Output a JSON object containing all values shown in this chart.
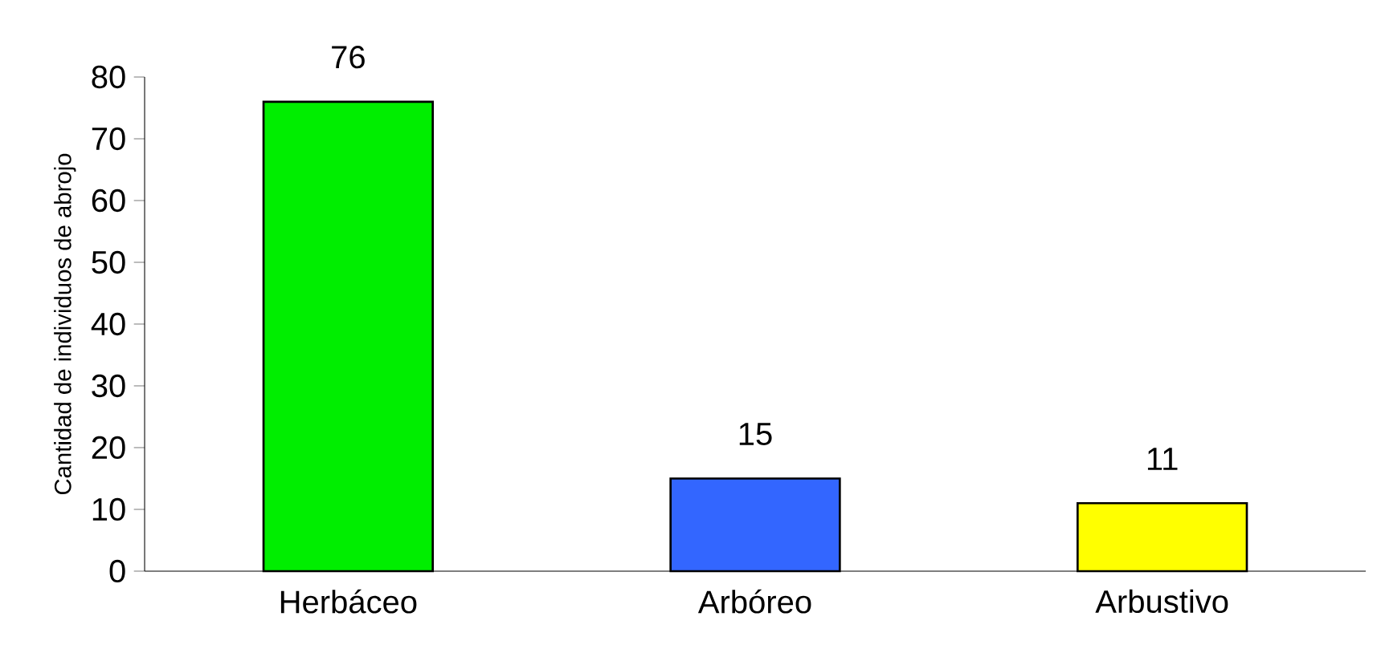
{
  "chart_data": {
    "type": "bar",
    "ylabel": "Cantidad de individuos de abrojo",
    "categories": [
      "Herbáceo",
      "Arbóreo",
      "Arbustivo"
    ],
    "values": [
      76,
      15,
      11
    ],
    "colors": [
      "#00ee00",
      "#3366ff",
      "#ffff00"
    ],
    "ylim": [
      0,
      80
    ],
    "yticks": [
      0,
      10,
      20,
      30,
      40,
      50,
      60,
      70,
      80
    ],
    "data_labels": true
  }
}
